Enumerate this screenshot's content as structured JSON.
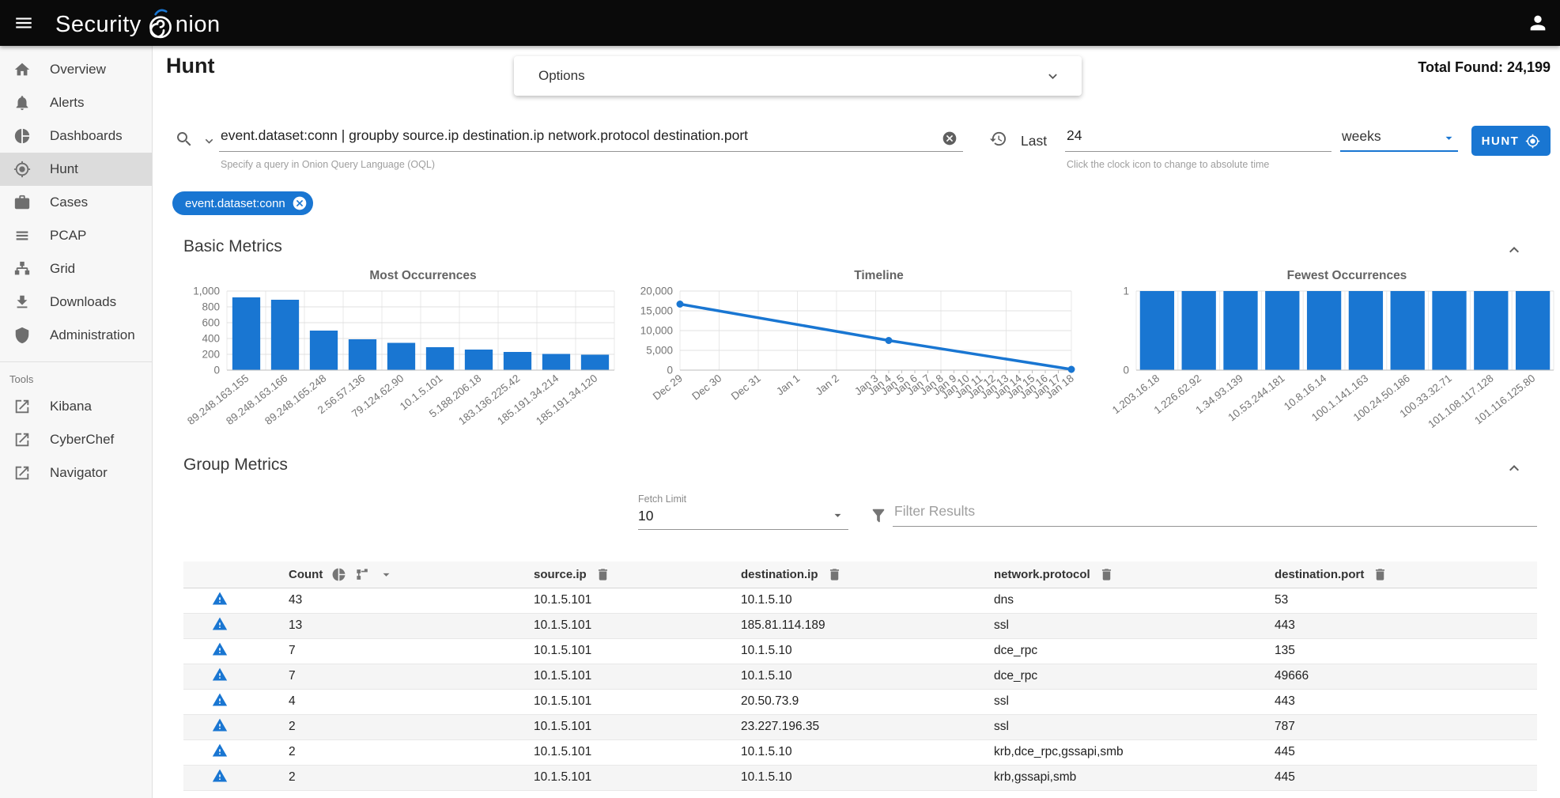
{
  "topbar": {
    "brand_prefix": "Security",
    "brand_suffix": "nion"
  },
  "sidebar": {
    "items": [
      {
        "label": "Overview",
        "icon": "home",
        "selected": false
      },
      {
        "label": "Alerts",
        "icon": "bell",
        "selected": false
      },
      {
        "label": "Dashboards",
        "icon": "pie",
        "selected": false
      },
      {
        "label": "Hunt",
        "icon": "crosshair",
        "selected": true
      },
      {
        "label": "Cases",
        "icon": "briefcase",
        "selected": false
      },
      {
        "label": "PCAP",
        "icon": "pcap",
        "selected": false
      },
      {
        "label": "Grid",
        "icon": "sitemap",
        "selected": false
      },
      {
        "label": "Downloads",
        "icon": "download",
        "selected": false
      },
      {
        "label": "Administration",
        "icon": "shield",
        "selected": false
      }
    ],
    "tools_label": "Tools",
    "tools": [
      {
        "label": "Kibana",
        "icon": "external"
      },
      {
        "label": "CyberChef",
        "icon": "external"
      },
      {
        "label": "Navigator",
        "icon": "external"
      }
    ]
  },
  "header": {
    "page_title": "Hunt",
    "options_label": "Options",
    "total_found": "Total Found: 24,199"
  },
  "search": {
    "query": "event.dataset:conn | groupby source.ip destination.ip network.protocol destination.port",
    "query_hint": "Specify a query in Onion Query Language (OQL)",
    "time_label": "Last",
    "duration": "24",
    "units": "weeks",
    "duration_hint": "Click the clock icon to change to absolute time",
    "hunt_label": "HUNT",
    "filter_chip": "event.dataset:conn"
  },
  "basic_metrics": {
    "title": "Basic Metrics"
  },
  "group_metrics": {
    "title": "Group Metrics",
    "fetch_limit_label": "Fetch Limit",
    "fetch_limit_value": "10",
    "filter_placeholder": "Filter Results"
  },
  "table": {
    "columns": [
      "Count",
      "source.ip",
      "destination.ip",
      "network.protocol",
      "destination.port"
    ],
    "rows": [
      [
        "43",
        "10.1.5.101",
        "10.1.5.10",
        "dns",
        "53"
      ],
      [
        "13",
        "10.1.5.101",
        "185.81.114.189",
        "ssl",
        "443"
      ],
      [
        "7",
        "10.1.5.101",
        "10.1.5.10",
        "dce_rpc",
        "135"
      ],
      [
        "7",
        "10.1.5.101",
        "10.1.5.10",
        "dce_rpc",
        "49666"
      ],
      [
        "4",
        "10.1.5.101",
        "20.50.73.9",
        "ssl",
        "443"
      ],
      [
        "2",
        "10.1.5.101",
        "23.227.196.35",
        "ssl",
        "787"
      ],
      [
        "2",
        "10.1.5.101",
        "10.1.5.10",
        "krb,dce_rpc,gssapi,smb",
        "445"
      ],
      [
        "2",
        "10.1.5.101",
        "10.1.5.10",
        "krb,gssapi,smb",
        "445"
      ]
    ]
  },
  "chart_data": [
    {
      "type": "bar",
      "title": "Most Occurrences",
      "categories": [
        "89.248.163.155",
        "89.248.163.166",
        "89.248.165.248",
        "2.56.57.136",
        "79.124.62.90",
        "10.1.5.101",
        "5.188.206.18",
        "183.136.225.42",
        "185.191.34.214",
        "185.191.34.120"
      ],
      "values": [
        920,
        890,
        500,
        390,
        345,
        290,
        260,
        230,
        205,
        195
      ],
      "ylim": [
        0,
        1000
      ],
      "yticks": [
        0,
        200,
        400,
        600,
        800,
        1000
      ],
      "grid": true,
      "color": "#1976d2"
    },
    {
      "type": "line",
      "title": "Timeline",
      "categories": [
        "Dec 29",
        "Dec 30",
        "Dec 31",
        "Jan 1",
        "Jan 2",
        "Jan 3",
        "Jan 4",
        "Jan 5",
        "Jan 6",
        "Jan 7",
        "Jan 8",
        "Jan 9",
        "Jan 10",
        "Jan 11",
        "Jan 12",
        "Jan 13",
        "Jan 14",
        "Jan 15",
        "Jan 16",
        "Jan 17",
        "Jan 18"
      ],
      "points": [
        {
          "category": "Dec 29",
          "value": 16700
        },
        {
          "category": "Jan 4",
          "value": 7500
        },
        {
          "category": "Jan 18",
          "value": 200
        }
      ],
      "ylim": [
        0,
        20000
      ],
      "yticks": [
        0,
        5000,
        10000,
        15000,
        20000
      ],
      "grid": true,
      "color": "#1976d2"
    },
    {
      "type": "bar",
      "title": "Fewest Occurrences",
      "categories": [
        "1.203.16.18",
        "1.226.62.92",
        "1.34.93.139",
        "10.53.244.181",
        "10.8.16.14",
        "100.1.141.163",
        "100.24.50.186",
        "100.33.32.71",
        "101.108.117.128",
        "101.116.125.80"
      ],
      "values": [
        1,
        1,
        1,
        1,
        1,
        1,
        1,
        1,
        1,
        1
      ],
      "ylim": [
        0,
        1
      ],
      "yticks": [
        0,
        1
      ],
      "grid": true,
      "color": "#1976d2"
    }
  ],
  "colors": {
    "accent": "#1976d2",
    "topbar": "#0a0a0a",
    "warning_icon": "#1976d2"
  }
}
